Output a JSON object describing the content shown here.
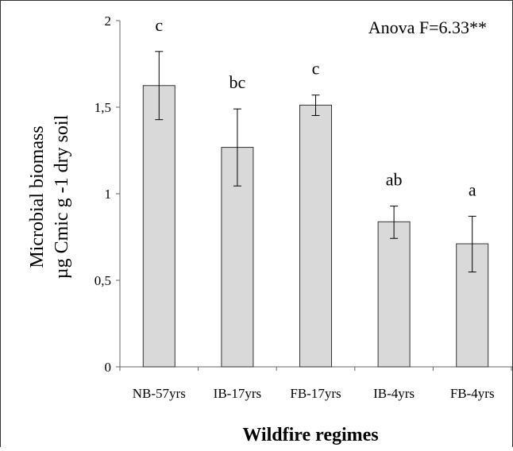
{
  "chart_data": {
    "type": "bar",
    "title": "",
    "annotation": "Anova F=6.33**",
    "xlabel": "Wildfire regimes",
    "ylabel_line1": "Microbial biomass",
    "ylabel_line2": "µg Cmic g -1 dry soil",
    "ylim": [
      0,
      2
    ],
    "yticks": [
      0,
      0.5,
      1,
      1.5,
      2
    ],
    "ytick_labels": [
      "0",
      "0,5",
      "1",
      "1,5",
      "2"
    ],
    "categories": [
      "NB-57yrs",
      "IB-17yrs",
      "FB-17yrs",
      "IB-4yrs",
      "FB-4yrs"
    ],
    "values": [
      1.625,
      1.268,
      1.512,
      0.838,
      0.711
    ],
    "error_low": [
      1.428,
      1.045,
      1.452,
      0.742,
      0.548
    ],
    "error_high": [
      1.822,
      1.49,
      1.57,
      0.929,
      0.87
    ],
    "significance": [
      "c",
      "bc",
      "c",
      "ab",
      "a"
    ],
    "bar_color": "#d9d9d9",
    "grid": false,
    "legend": "none"
  }
}
